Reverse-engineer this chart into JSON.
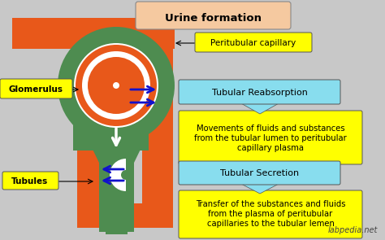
{
  "title": "Urine formation",
  "bg_color": "#c8c8c8",
  "title_box_color": "#f5c9a0",
  "orange_color": "#e8581a",
  "green_color": "#4e8c50",
  "green_dark": "#3a6e3a",
  "yellow_color": "#ffff00",
  "cyan_color": "#88ddee",
  "blue_arrow_color": "#1111cc",
  "white_color": "#ffffff",
  "labels": {
    "glomerulus": "Glomerulus",
    "tubules": "Tubules",
    "peritubular": "Peritubular capillary",
    "reabsorption": "Tubular Reabsorption",
    "reabsorption_desc": "Movements of fluids and substances\nfrom the tubular lumen to peritubular\ncapillary plasma",
    "secretion": "Tubular Secretion",
    "secretion_desc": "Transfer of the substances and fluids\nfrom the plasma of peritubular\ncapillaries to the tubular lemen",
    "watermark": "labpedia.net"
  }
}
